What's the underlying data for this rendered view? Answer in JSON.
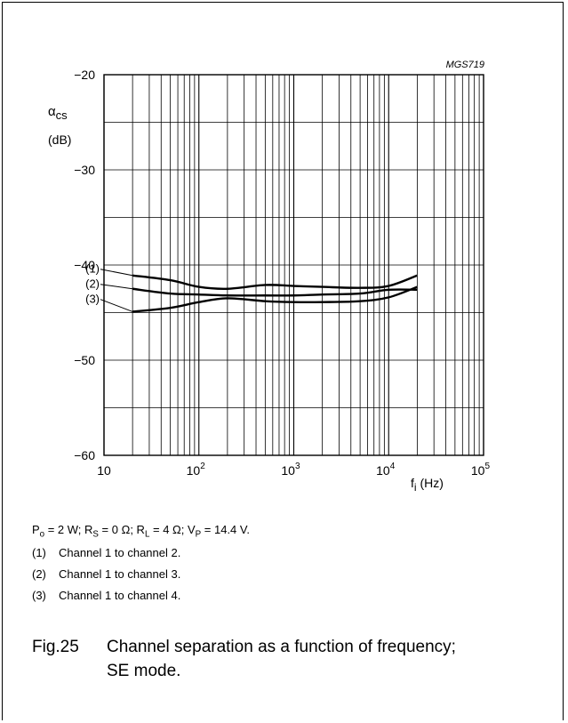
{
  "figure_code": "MGS719",
  "conditions": {
    "po_label": "P",
    "po_sub": "o",
    "po_rest": " = 2 W; R",
    "rs_sub": "S",
    "rs_rest": " = 0 Ω; R",
    "rl_sub": "L",
    "rl_rest": " = 4 Ω; V",
    "vp_sub": "P",
    "vp_rest": " = 14.4 V."
  },
  "notes": [
    {
      "num": "(1)",
      "text": "Channel 1 to channel 2."
    },
    {
      "num": "(2)",
      "text": "Channel 1 to channel 3."
    },
    {
      "num": "(3)",
      "text": "Channel 1 to channel 4."
    }
  ],
  "caption": {
    "fig": "Fig.25",
    "text": "Channel separation as a function of frequency; SE mode."
  },
  "chart_data": {
    "type": "line",
    "x_scale": "log",
    "xlim": [
      10,
      100000
    ],
    "ylim": [
      -60,
      -20
    ],
    "grid": true,
    "ylabel_symbol": "α",
    "ylabel_sub": "cs",
    "ylabel_unit": "(dB)",
    "xlabel_symbol": "f",
    "xlabel_sub": "i",
    "xlabel_unit": " (Hz)",
    "y_ticks": [
      {
        "value": -20,
        "label": "−20"
      },
      {
        "value": -30,
        "label": "−30"
      },
      {
        "value": -40,
        "label": "−40"
      },
      {
        "value": -50,
        "label": "−50"
      },
      {
        "value": -60,
        "label": "−60"
      }
    ],
    "x_ticks": [
      {
        "value": 10,
        "base": "10",
        "exp": ""
      },
      {
        "value": 100,
        "base": "10",
        "exp": "2"
      },
      {
        "value": 1000,
        "base": "10",
        "exp": "3"
      },
      {
        "value": 10000,
        "base": "10",
        "exp": "4"
      },
      {
        "value": 100000,
        "base": "10",
        "exp": "5"
      }
    ],
    "series": [
      {
        "name": "(1)",
        "x": [
          20,
          50,
          100,
          200,
          500,
          1000,
          2000,
          5000,
          10000,
          20000
        ],
        "y": [
          -41.1,
          -41.6,
          -42.3,
          -42.5,
          -42.1,
          -42.2,
          -42.3,
          -42.4,
          -42.2,
          -41.1
        ]
      },
      {
        "name": "(2)",
        "x": [
          20,
          50,
          100,
          200,
          500,
          1000,
          2000,
          5000,
          10000,
          20000
        ],
        "y": [
          -42.5,
          -43.0,
          -43.1,
          -43.2,
          -43.2,
          -43.2,
          -43.1,
          -43.0,
          -42.6,
          -42.6
        ]
      },
      {
        "name": "(3)",
        "x": [
          20,
          50,
          100,
          200,
          500,
          1000,
          2000,
          5000,
          10000,
          20000
        ],
        "y": [
          -44.9,
          -44.5,
          -43.9,
          -43.5,
          -43.8,
          -43.9,
          -43.9,
          -43.8,
          -43.4,
          -42.3
        ]
      }
    ]
  }
}
